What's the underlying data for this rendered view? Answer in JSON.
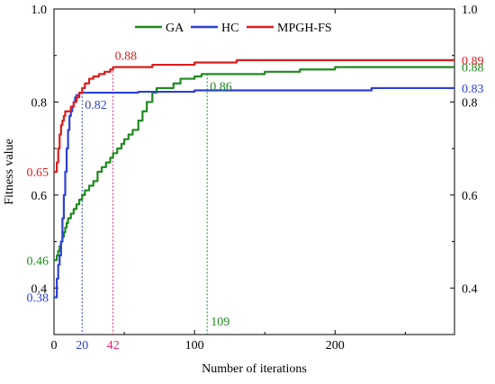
{
  "chart_data": {
    "type": "line",
    "title": "",
    "xlabel": "Number of iterations",
    "ylabel": "Fitness value",
    "xlim": [
      0,
      285
    ],
    "ylim": [
      0.3,
      1.0
    ],
    "x_ticks": [
      0,
      100,
      200
    ],
    "y_ticks": [
      0.4,
      0.6,
      0.8,
      1.0
    ],
    "y_tick_labels": [
      "0.4",
      "0.6",
      "0.8",
      "1.0"
    ],
    "grid": false,
    "legend_position": "top-center",
    "series": [
      {
        "name": "GA",
        "color": "#1e8a1e",
        "x": [
          0,
          1,
          2,
          3,
          4,
          5,
          6,
          7,
          8,
          9,
          10,
          12,
          14,
          16,
          18,
          20,
          22,
          25,
          28,
          31,
          34,
          37,
          40,
          42,
          45,
          48,
          50,
          53,
          56,
          60,
          63,
          66,
          70,
          73,
          75,
          80,
          85,
          90,
          95,
          100,
          105,
          109,
          115,
          130,
          150,
          175,
          200,
          230,
          260,
          285
        ],
        "y": [
          0.46,
          0.46,
          0.47,
          0.48,
          0.49,
          0.5,
          0.51,
          0.52,
          0.53,
          0.54,
          0.55,
          0.56,
          0.57,
          0.58,
          0.59,
          0.6,
          0.61,
          0.62,
          0.63,
          0.65,
          0.66,
          0.67,
          0.68,
          0.69,
          0.7,
          0.71,
          0.72,
          0.73,
          0.74,
          0.76,
          0.78,
          0.8,
          0.82,
          0.83,
          0.83,
          0.83,
          0.84,
          0.85,
          0.85,
          0.855,
          0.86,
          0.86,
          0.86,
          0.86,
          0.865,
          0.87,
          0.875,
          0.875,
          0.875,
          0.875
        ]
      },
      {
        "name": "HC",
        "color": "#2c3fd8",
        "x": [
          0,
          1,
          2,
          3,
          4,
          5,
          6,
          7,
          8,
          9,
          10,
          11,
          12,
          13,
          14,
          15,
          16,
          17,
          18,
          20,
          25,
          30,
          40,
          60,
          80,
          100,
          150,
          200,
          225,
          226,
          285
        ],
        "y": [
          0.38,
          0.38,
          0.42,
          0.45,
          0.47,
          0.5,
          0.55,
          0.6,
          0.65,
          0.7,
          0.74,
          0.77,
          0.78,
          0.79,
          0.8,
          0.81,
          0.815,
          0.815,
          0.82,
          0.82,
          0.82,
          0.82,
          0.82,
          0.822,
          0.822,
          0.825,
          0.825,
          0.825,
          0.825,
          0.83,
          0.83
        ]
      },
      {
        "name": "MPGH-FS",
        "color": "#e01b1b",
        "x": [
          0,
          1,
          2,
          3,
          4,
          5,
          6,
          7,
          8,
          10,
          12,
          14,
          16,
          18,
          20,
          22,
          25,
          28,
          32,
          36,
          40,
          42,
          50,
          60,
          70,
          80,
          100,
          130,
          150,
          200,
          250,
          285
        ],
        "y": [
          0.65,
          0.65,
          0.67,
          0.7,
          0.73,
          0.75,
          0.76,
          0.77,
          0.78,
          0.78,
          0.79,
          0.8,
          0.81,
          0.82,
          0.83,
          0.84,
          0.85,
          0.855,
          0.86,
          0.865,
          0.87,
          0.875,
          0.875,
          0.875,
          0.88,
          0.88,
          0.885,
          0.89,
          0.89,
          0.89,
          0.89,
          0.89
        ]
      }
    ],
    "annotations": [
      {
        "text": "0.65",
        "color": "#e01b1b",
        "x": 0,
        "y": 0.65,
        "where": "left-axis"
      },
      {
        "text": "0.46",
        "color": "#1e8a1e",
        "x": 0,
        "y": 0.46,
        "where": "left-axis"
      },
      {
        "text": "0.38",
        "color": "#2c3fd8",
        "x": 0,
        "y": 0.38,
        "where": "left-axis"
      },
      {
        "text": "0.89",
        "color": "#e01b1b",
        "x": 285,
        "y": 0.89,
        "where": "right-axis"
      },
      {
        "text": "0.88",
        "color": "#1e8a1e",
        "x": 285,
        "y": 0.875,
        "where": "right-axis"
      },
      {
        "text": "0.83",
        "color": "#2c3fd8",
        "x": 285,
        "y": 0.83,
        "where": "right-axis"
      },
      {
        "text": "0.88",
        "color": "#e01b1b",
        "x": 42,
        "y": 0.875,
        "where": "above-point"
      },
      {
        "text": "0.82",
        "color": "#2c3fd8",
        "x": 20,
        "y": 0.82,
        "where": "below-point"
      },
      {
        "text": "0.86",
        "color": "#1e8a1e",
        "x": 109,
        "y": 0.86,
        "where": "below-point"
      }
    ],
    "markers": [
      {
        "x": 20,
        "y": 0.82,
        "label": "20",
        "color": "#2c3fd8"
      },
      {
        "x": 42,
        "y": 0.875,
        "label": "42",
        "color": "#e0207a"
      },
      {
        "x": 109,
        "y": 0.86,
        "label": "109",
        "color": "#1e8a1e"
      }
    ]
  }
}
